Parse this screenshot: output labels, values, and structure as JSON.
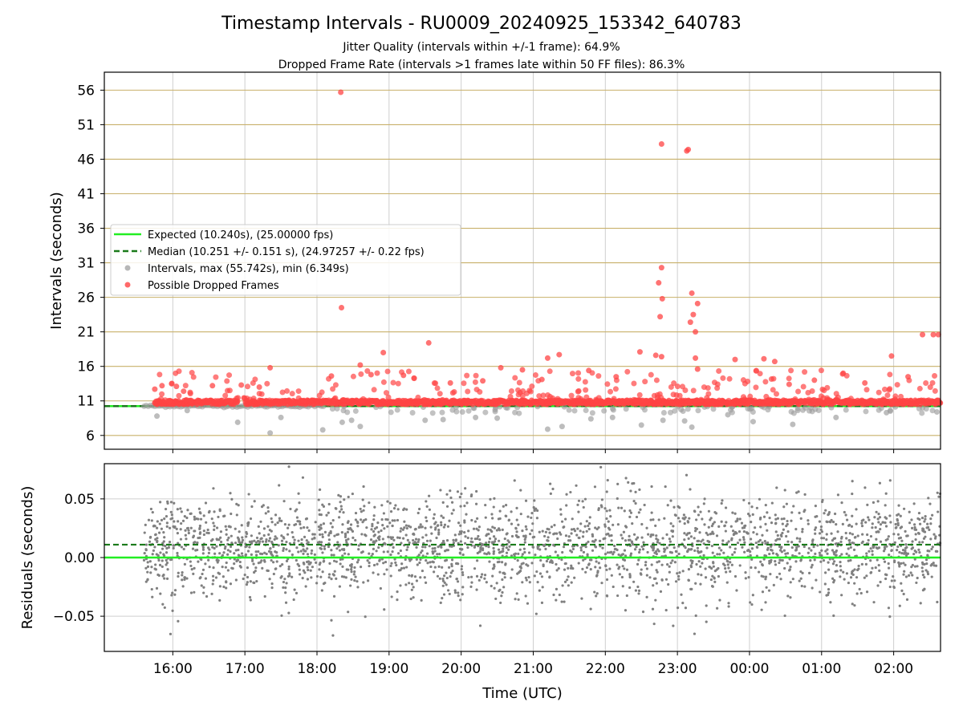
{
  "chart_data": [
    {
      "type": "scatter",
      "title": "Timestamp Intervals - RU0009_20240925_153342_640783",
      "subtitle_lines": [
        "Jitter Quality (intervals within +/-1 frame): 64.9%",
        "Dropped Frame Rate (intervals >1 frames late within 50 FF files): 86.3%"
      ],
      "ylabel": "Intervals (seconds)",
      "xlabel": "",
      "ylim": [
        4,
        58.6
      ],
      "yticks": [
        6,
        11,
        16,
        21,
        26,
        31,
        36,
        41,
        46,
        51,
        56
      ],
      "xlim_hours": [
        15.05,
        26.65
      ],
      "grid": true,
      "legend_placement": "center-left",
      "legend": [
        {
          "label": "Expected (10.240s), (25.00000 fps)",
          "kind": "line",
          "color": "#22ee22"
        },
        {
          "label": "Median (10.251 +/- 0.151 s), (24.97257 +/- 0.22 fps)",
          "kind": "dashed",
          "color": "#1a7a1a"
        },
        {
          "label": "Intervals, max (55.742s), min (6.349s)",
          "kind": "dot",
          "color": "#999999"
        },
        {
          "label": "Possible Dropped Frames",
          "kind": "dot",
          "color": "#ff4444"
        }
      ],
      "expected_interval": 10.24,
      "median_interval": 10.251,
      "series": [
        {
          "name": "Intervals, max (55.742s), min (6.349s)",
          "color": "#999999",
          "points": [
            [
              15.78,
              8.8
            ],
            [
              16.2,
              9.6
            ],
            [
              16.9,
              7.9
            ],
            [
              17.35,
              6.35
            ],
            [
              17.5,
              8.6
            ],
            [
              18.08,
              6.8
            ],
            [
              18.35,
              7.9
            ],
            [
              18.48,
              8.2
            ],
            [
              18.6,
              7.3
            ],
            [
              19.5,
              8.2
            ],
            [
              19.75,
              8.3
            ],
            [
              20.2,
              8.6
            ],
            [
              20.5,
              8.5
            ],
            [
              21.2,
              6.9
            ],
            [
              21.4,
              7.3
            ],
            [
              21.8,
              8.4
            ],
            [
              22.1,
              8.6
            ],
            [
              22.5,
              7.5
            ],
            [
              22.8,
              8.2
            ],
            [
              23.1,
              8.1
            ],
            [
              23.2,
              7.2
            ],
            [
              23.7,
              9.0
            ],
            [
              24.05,
              8.0
            ],
            [
              24.6,
              7.6
            ],
            [
              25.2,
              8.6
            ],
            [
              25.9,
              9.3
            ],
            [
              26.6,
              9.4
            ]
          ]
        },
        {
          "name": "Possible Dropped Frames",
          "color": "#ff4444",
          "points": [
            [
              15.75,
              12.7
            ],
            [
              15.85,
              13.2
            ],
            [
              16.05,
              13.1
            ],
            [
              16.15,
              12.4
            ],
            [
              16.55,
              13.2
            ],
            [
              16.95,
              13.3
            ],
            [
              17.2,
              13.0
            ],
            [
              17.35,
              15.8
            ],
            [
              18.2,
              14.6
            ],
            [
              18.33,
              55.7
            ],
            [
              18.34,
              24.5
            ],
            [
              18.6,
              16.2
            ],
            [
              18.75,
              14.8
            ],
            [
              18.92,
              18.0
            ],
            [
              19.2,
              14.7
            ],
            [
              19.55,
              19.4
            ],
            [
              19.85,
              13.6
            ],
            [
              20.3,
              13.9
            ],
            [
              20.55,
              15.8
            ],
            [
              20.85,
              15.5
            ],
            [
              21.12,
              14.1
            ],
            [
              21.2,
              17.2
            ],
            [
              21.36,
              17.7
            ],
            [
              21.77,
              15.4
            ],
            [
              22.15,
              14.5
            ],
            [
              22.48,
              18.1
            ],
            [
              22.7,
              17.6
            ],
            [
              22.78,
              17.4
            ],
            [
              22.74,
              28.1
            ],
            [
              22.76,
              23.2
            ],
            [
              22.79,
              25.8
            ],
            [
              22.78,
              30.3
            ],
            [
              22.78,
              48.2
            ],
            [
              23.13,
              47.2
            ],
            [
              23.15,
              47.4
            ],
            [
              23.2,
              26.6
            ],
            [
              23.28,
              25.1
            ],
            [
              23.18,
              22.4
            ],
            [
              23.22,
              23.5
            ],
            [
              23.25,
              21.0
            ],
            [
              23.28,
              15.6
            ],
            [
              23.25,
              17.2
            ],
            [
              23.8,
              17.0
            ],
            [
              24.2,
              17.1
            ],
            [
              24.35,
              16.7
            ],
            [
              24.9,
              14.0
            ],
            [
              25.3,
              15.0
            ],
            [
              25.97,
              17.5
            ],
            [
              26.4,
              20.6
            ],
            [
              26.55,
              20.6
            ],
            [
              26.62,
              20.6
            ],
            [
              26.2,
              14.5
            ],
            [
              25.6,
              13.6
            ],
            [
              24.55,
              13.4
            ]
          ]
        }
      ]
    },
    {
      "type": "scatter",
      "title": "",
      "ylabel": "Residuals (seconds)",
      "xlabel": "Time (UTC)",
      "ylim": [
        -0.08,
        0.08
      ],
      "yticks": [
        -0.05,
        0.0,
        0.05
      ],
      "ytick_labels": [
        "−0.05",
        "0.00",
        "0.05"
      ],
      "xlim_hours": [
        15.05,
        26.65
      ],
      "xticks": [
        "16:00",
        "17:00",
        "18:00",
        "19:00",
        "20:00",
        "21:00",
        "22:00",
        "23:00",
        "00:00",
        "01:00",
        "02:00"
      ],
      "xtick_hours": [
        16,
        17,
        18,
        19,
        20,
        21,
        22,
        23,
        24,
        25,
        26
      ],
      "grid": true,
      "zero_line": 0.0,
      "median_residual": 0.011,
      "series": [
        {
          "name": "",
          "color": "#808080",
          "points_range_x": [
            15.6,
            26.65
          ],
          "points_range_y": [
            -0.08,
            0.08
          ],
          "approx_count": 2600
        }
      ]
    }
  ]
}
